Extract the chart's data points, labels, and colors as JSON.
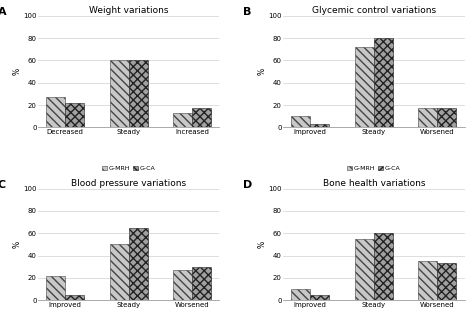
{
  "panels": [
    {
      "label": "A",
      "title": "Weight variations",
      "categories": [
        "Decreased",
        "Steady",
        "Increased"
      ],
      "gmrh": [
        27,
        60,
        13
      ],
      "gca": [
        22,
        60,
        17
      ],
      "ylabel": "%"
    },
    {
      "label": "B",
      "title": "Glycemic control variations",
      "categories": [
        "Improved",
        "Steady",
        "Worsened"
      ],
      "gmrh": [
        10,
        72,
        17
      ],
      "gca": [
        3,
        80,
        17
      ],
      "ylabel": "%"
    },
    {
      "label": "C",
      "title": "Blood pressure variations",
      "categories": [
        "Improved",
        "Steady",
        "Worsened"
      ],
      "gmrh": [
        22,
        50,
        27
      ],
      "gca": [
        5,
        65,
        30
      ],
      "ylabel": "%"
    },
    {
      "label": "D",
      "title": "Bone health variations",
      "categories": [
        "Improved",
        "Steady",
        "Worsened"
      ],
      "gmrh": [
        10,
        55,
        35
      ],
      "gca": [
        5,
        60,
        33
      ],
      "ylabel": "%"
    }
  ],
  "ylim": [
    0,
    100
  ],
  "yticks": [
    0,
    20,
    40,
    60,
    80,
    100
  ],
  "bar_width": 0.3,
  "legend_gmrh": "G-MRH",
  "legend_gca": "G-CA",
  "color_gmrh": "#c8c8c8",
  "color_gca": "#a0a0a0",
  "background_color": "#ffffff",
  "grid_color": "#d0d0d0"
}
